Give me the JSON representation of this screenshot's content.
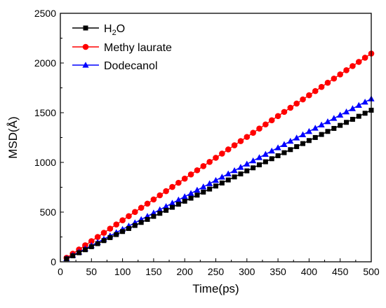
{
  "chart_data": {
    "type": "line",
    "title": "",
    "xlabel": "Time(ps)",
    "ylabel": "MSD(Å)",
    "xlim": [
      0,
      500
    ],
    "ylim": [
      0,
      2500
    ],
    "xticks": [
      0,
      50,
      100,
      150,
      200,
      250,
      300,
      350,
      400,
      450,
      500
    ],
    "yticks": [
      0,
      500,
      1000,
      1500,
      2000,
      2500
    ],
    "grid": false,
    "legend_position": "top-left",
    "series": [
      {
        "name": "H2O",
        "label_main": "H",
        "label_sub": "2",
        "label_tail": "O",
        "color": "#000000",
        "marker": "square",
        "x": [
          0,
          10,
          500
        ],
        "y": [
          0,
          30,
          1525
        ]
      },
      {
        "name": "Methy laurate",
        "label_main": "Methy laurate",
        "color": "#ff0000",
        "marker": "circle",
        "x": [
          0,
          10,
          500
        ],
        "y": [
          0,
          40,
          2095
        ]
      },
      {
        "name": "Dodecanol",
        "label_main": "Dodecanol",
        "color": "#0000ff",
        "marker": "triangle",
        "x": [
          0,
          10,
          500
        ],
        "y": [
          0,
          32,
          1640
        ]
      }
    ]
  }
}
